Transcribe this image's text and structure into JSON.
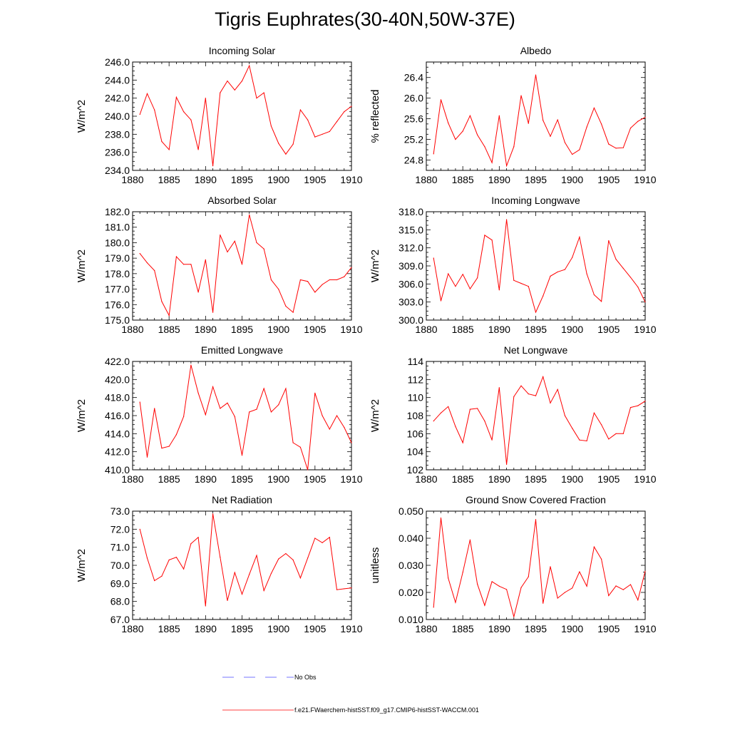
{
  "title": "Tigris Euphrates(30-40N,50W-37E)",
  "colors": {
    "series": "#ff0000",
    "no_obs": "#4a4aff",
    "axis": "#000000"
  },
  "legend": {
    "no_obs_label": "No Obs",
    "model_label": "f.e21.FWaerchem-histSST.f09_g17.CMIP6-histSST-WACCM.001"
  },
  "chart_data": [
    {
      "type": "line",
      "title": "Incoming Solar",
      "ylabel": "W/m^2",
      "xlim": [
        1880,
        1910
      ],
      "ylim": [
        234.0,
        246.0
      ],
      "yticks": [
        "234.0",
        "236.0",
        "238.0",
        "240.0",
        "242.0",
        "244.0",
        "246.0"
      ],
      "xticks": [
        "1880",
        "1885",
        "1890",
        "1895",
        "1900",
        "1905",
        "1910"
      ],
      "x": [
        1881,
        1882,
        1883,
        1884,
        1885,
        1886,
        1887,
        1888,
        1889,
        1890,
        1891,
        1892,
        1893,
        1894,
        1895,
        1896,
        1897,
        1898,
        1899,
        1900,
        1901,
        1902,
        1903,
        1904,
        1905,
        1906,
        1907,
        1908,
        1909,
        1910
      ],
      "values": [
        240.2,
        242.5,
        240.7,
        237.2,
        236.3,
        242.1,
        240.5,
        239.6,
        236.3,
        242.0,
        234.5,
        242.6,
        243.9,
        242.9,
        243.9,
        245.6,
        242.0,
        242.6,
        238.9,
        237.0,
        235.8,
        236.9,
        240.7,
        239.6,
        237.7,
        238.0,
        238.3,
        239.4,
        240.5,
        241.1
      ]
    },
    {
      "type": "line",
      "title": "Albedo",
      "ylabel": "% reflected",
      "xlim": [
        1880,
        1910
      ],
      "ylim": [
        24.6,
        26.7
      ],
      "yticks": [
        "24.8",
        "25.2",
        "25.6",
        "26.0",
        "26.4"
      ],
      "xticks": [
        "1880",
        "1885",
        "1890",
        "1895",
        "1900",
        "1905",
        "1910"
      ],
      "x": [
        1881,
        1882,
        1883,
        1884,
        1885,
        1886,
        1887,
        1888,
        1889,
        1890,
        1891,
        1892,
        1893,
        1894,
        1895,
        1896,
        1897,
        1898,
        1899,
        1900,
        1901,
        1902,
        1903,
        1904,
        1905,
        1906,
        1907,
        1908,
        1909,
        1910
      ],
      "values": [
        24.92,
        25.97,
        25.52,
        25.2,
        25.36,
        25.66,
        25.29,
        25.06,
        24.75,
        25.66,
        24.69,
        25.06,
        26.05,
        25.51,
        26.45,
        25.57,
        25.26,
        25.58,
        25.14,
        24.91,
        25.0,
        25.44,
        25.81,
        25.5,
        25.11,
        25.03,
        25.04,
        25.42,
        25.55,
        25.63
      ]
    },
    {
      "type": "line",
      "title": "Absorbed Solar",
      "ylabel": "W/m^2",
      "xlim": [
        1880,
        1910
      ],
      "ylim": [
        175.0,
        182.0
      ],
      "yticks": [
        "175.0",
        "176.0",
        "177.0",
        "178.0",
        "179.0",
        "180.0",
        "181.0",
        "182.0"
      ],
      "xticks": [
        "1880",
        "1885",
        "1890",
        "1895",
        "1900",
        "1905",
        "1910"
      ],
      "x": [
        1881,
        1882,
        1883,
        1884,
        1885,
        1886,
        1887,
        1888,
        1889,
        1890,
        1891,
        1892,
        1893,
        1894,
        1895,
        1896,
        1897,
        1898,
        1899,
        1900,
        1901,
        1902,
        1903,
        1904,
        1905,
        1906,
        1907,
        1908,
        1909,
        1910
      ],
      "values": [
        179.3,
        178.7,
        178.2,
        176.2,
        175.3,
        179.1,
        178.6,
        178.6,
        176.8,
        178.9,
        175.5,
        180.5,
        179.4,
        180.1,
        178.6,
        181.8,
        180.0,
        179.6,
        177.6,
        177.0,
        175.9,
        175.5,
        177.6,
        177.5,
        176.8,
        177.3,
        177.6,
        177.6,
        177.8,
        178.4
      ]
    },
    {
      "type": "line",
      "title": "Incoming Longwave",
      "ylabel": "W/m^2",
      "xlim": [
        1880,
        1910
      ],
      "ylim": [
        300.0,
        318.0
      ],
      "yticks": [
        "300.0",
        "303.0",
        "306.0",
        "309.0",
        "312.0",
        "315.0",
        "318.0"
      ],
      "xticks": [
        "1880",
        "1885",
        "1890",
        "1895",
        "1900",
        "1905",
        "1910"
      ],
      "x": [
        1881,
        1882,
        1883,
        1884,
        1885,
        1886,
        1887,
        1888,
        1889,
        1890,
        1891,
        1892,
        1893,
        1894,
        1895,
        1896,
        1897,
        1898,
        1899,
        1900,
        1901,
        1902,
        1903,
        1904,
        1905,
        1906,
        1907,
        1908,
        1909,
        1910
      ],
      "values": [
        310.3,
        303.2,
        307.7,
        305.6,
        307.6,
        305.2,
        307.0,
        314.1,
        313.3,
        305.0,
        316.7,
        306.6,
        306.1,
        305.6,
        301.3,
        304.0,
        307.3,
        308.0,
        308.4,
        310.4,
        313.8,
        307.7,
        304.2,
        303.1,
        313.2,
        310.1,
        308.6,
        307.1,
        305.5,
        303.0
      ]
    },
    {
      "type": "line",
      "title": "Emitted Longwave",
      "ylabel": "W/m^2",
      "xlim": [
        1880,
        1910
      ],
      "ylim": [
        410.0,
        422.0
      ],
      "yticks": [
        "410.0",
        "412.0",
        "414.0",
        "416.0",
        "418.0",
        "420.0",
        "422.0"
      ],
      "xticks": [
        "1880",
        "1885",
        "1890",
        "1895",
        "1900",
        "1905",
        "1910"
      ],
      "x": [
        1881,
        1882,
        1883,
        1884,
        1885,
        1886,
        1887,
        1888,
        1889,
        1890,
        1891,
        1892,
        1893,
        1894,
        1895,
        1896,
        1897,
        1898,
        1899,
        1900,
        1901,
        1902,
        1903,
        1904,
        1905,
        1906,
        1907,
        1908,
        1909,
        1910
      ],
      "values": [
        417.5,
        411.4,
        416.8,
        412.4,
        412.6,
        413.9,
        415.9,
        421.6,
        418.5,
        416.1,
        419.2,
        416.8,
        417.4,
        415.9,
        411.6,
        416.4,
        416.7,
        419.0,
        416.4,
        417.2,
        419.0,
        413.0,
        412.5,
        410.0,
        418.5,
        416.0,
        414.5,
        416.0,
        414.7,
        413.0
      ]
    },
    {
      "type": "line",
      "title": "Net Longwave",
      "ylabel": "W/m^2",
      "xlim": [
        1880,
        1910
      ],
      "ylim": [
        102,
        114
      ],
      "yticks": [
        "102",
        "104",
        "106",
        "108",
        "110",
        "112",
        "114"
      ],
      "xticks": [
        "1880",
        "1885",
        "1890",
        "1895",
        "1900",
        "1905",
        "1910"
      ],
      "x": [
        1881,
        1882,
        1883,
        1884,
        1885,
        1886,
        1887,
        1888,
        1889,
        1890,
        1891,
        1892,
        1893,
        1894,
        1895,
        1896,
        1897,
        1898,
        1899,
        1900,
        1901,
        1902,
        1903,
        1904,
        1905,
        1906,
        1907,
        1908,
        1909,
        1910
      ],
      "values": [
        107.4,
        108.3,
        109.0,
        106.8,
        105.0,
        108.7,
        108.8,
        107.4,
        105.3,
        111.1,
        102.6,
        110.1,
        111.3,
        110.4,
        110.2,
        112.3,
        109.4,
        110.9,
        108.0,
        106.6,
        105.3,
        105.2,
        108.3,
        107.0,
        105.4,
        106.0,
        106.0,
        108.9,
        109.1,
        109.6
      ]
    },
    {
      "type": "line",
      "title": "Net Radiation",
      "ylabel": "W/m^2",
      "xlim": [
        1880,
        1910
      ],
      "ylim": [
        67.0,
        73.0
      ],
      "yticks": [
        "67.0",
        "68.0",
        "69.0",
        "70.0",
        "71.0",
        "72.0",
        "73.0"
      ],
      "xticks": [
        "1880",
        "1885",
        "1890",
        "1895",
        "1900",
        "1905",
        "1910"
      ],
      "x": [
        1881,
        1882,
        1883,
        1884,
        1885,
        1886,
        1887,
        1888,
        1889,
        1890,
        1891,
        1892,
        1893,
        1894,
        1895,
        1896,
        1897,
        1898,
        1899,
        1900,
        1901,
        1902,
        1903,
        1904,
        1905,
        1906,
        1907,
        1908,
        1909,
        1910
      ],
      "values": [
        72.0,
        70.4,
        69.15,
        69.4,
        70.3,
        70.45,
        69.8,
        71.2,
        71.55,
        67.75,
        72.85,
        70.45,
        68.05,
        69.6,
        68.4,
        69.5,
        70.55,
        68.6,
        69.55,
        70.35,
        70.65,
        70.3,
        69.3,
        70.4,
        71.5,
        71.25,
        71.55,
        68.65,
        68.7,
        68.75
      ]
    },
    {
      "type": "line",
      "title": "Ground Snow Covered Fraction",
      "ylabel": "unitless",
      "xlim": [
        1880,
        1910
      ],
      "ylim": [
        0.01,
        0.05
      ],
      "yticks": [
        "0.010",
        "0.020",
        "0.030",
        "0.040",
        "0.050"
      ],
      "xticks": [
        "1880",
        "1885",
        "1890",
        "1895",
        "1900",
        "1905",
        "1910"
      ],
      "x": [
        1881,
        1882,
        1883,
        1884,
        1885,
        1886,
        1887,
        1888,
        1889,
        1890,
        1891,
        1892,
        1893,
        1894,
        1895,
        1896,
        1897,
        1898,
        1899,
        1900,
        1901,
        1902,
        1903,
        1904,
        1905,
        1906,
        1907,
        1908,
        1909,
        1910
      ],
      "values": [
        0.0145,
        0.0475,
        0.0253,
        0.0163,
        0.0274,
        0.0394,
        0.0231,
        0.0152,
        0.024,
        0.0223,
        0.0211,
        0.011,
        0.0218,
        0.0258,
        0.0469,
        0.016,
        0.0295,
        0.0179,
        0.02,
        0.0216,
        0.0276,
        0.0223,
        0.0368,
        0.0323,
        0.0188,
        0.0224,
        0.021,
        0.0229,
        0.0172,
        0.0278
      ]
    }
  ]
}
